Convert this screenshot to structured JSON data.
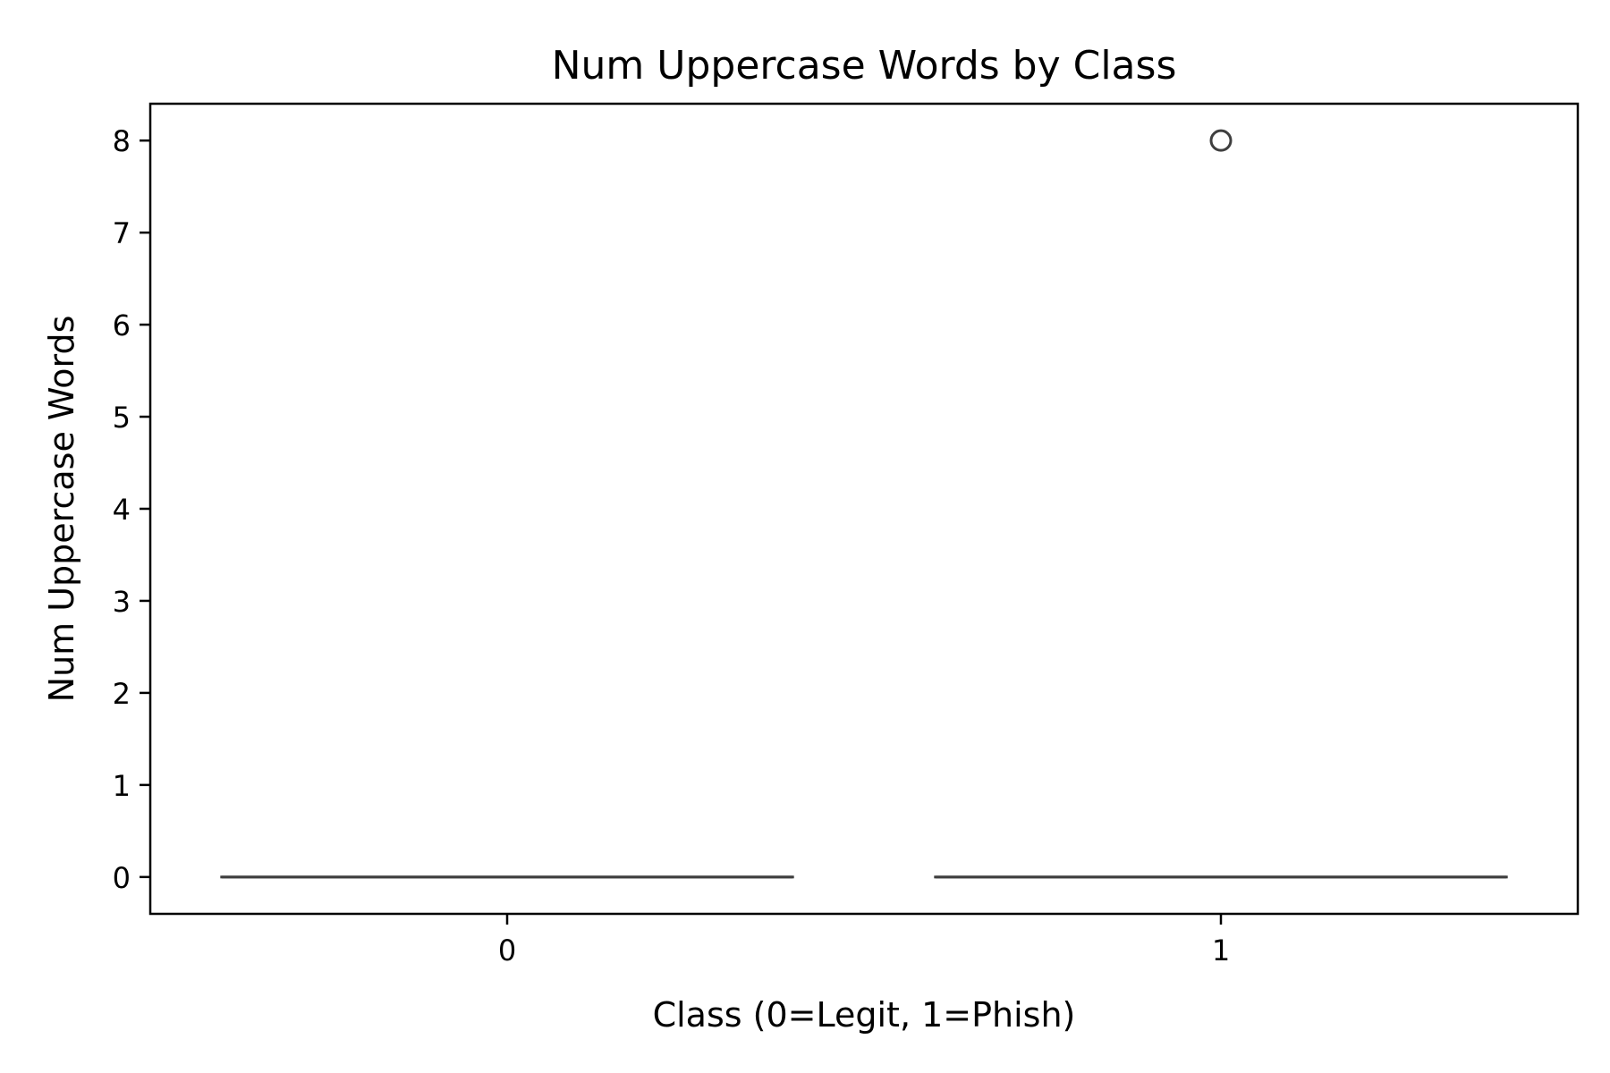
{
  "chart_data": {
    "type": "box",
    "title": "Num Uppercase Words by Class",
    "xlabel": "Class (0=Legit, 1=Phish)",
    "ylabel": "Num Uppercase Words",
    "categories": [
      "0",
      "1"
    ],
    "boxes": [
      {
        "category": "0",
        "min": 0,
        "q1": 0,
        "median": 0,
        "q3": 0,
        "max": 0,
        "outliers": []
      },
      {
        "category": "1",
        "min": 0,
        "q1": 0,
        "median": 0,
        "q3": 0,
        "max": 0,
        "outliers": [
          8
        ]
      }
    ],
    "y_ticks": [
      0,
      1,
      2,
      3,
      4,
      5,
      6,
      7,
      8
    ],
    "ylim": [
      -0.4,
      8.4
    ],
    "grid": false,
    "legend": "none",
    "colors": {
      "line": "#3f3f3f",
      "axes": "#000000",
      "background": "#ffffff"
    }
  }
}
